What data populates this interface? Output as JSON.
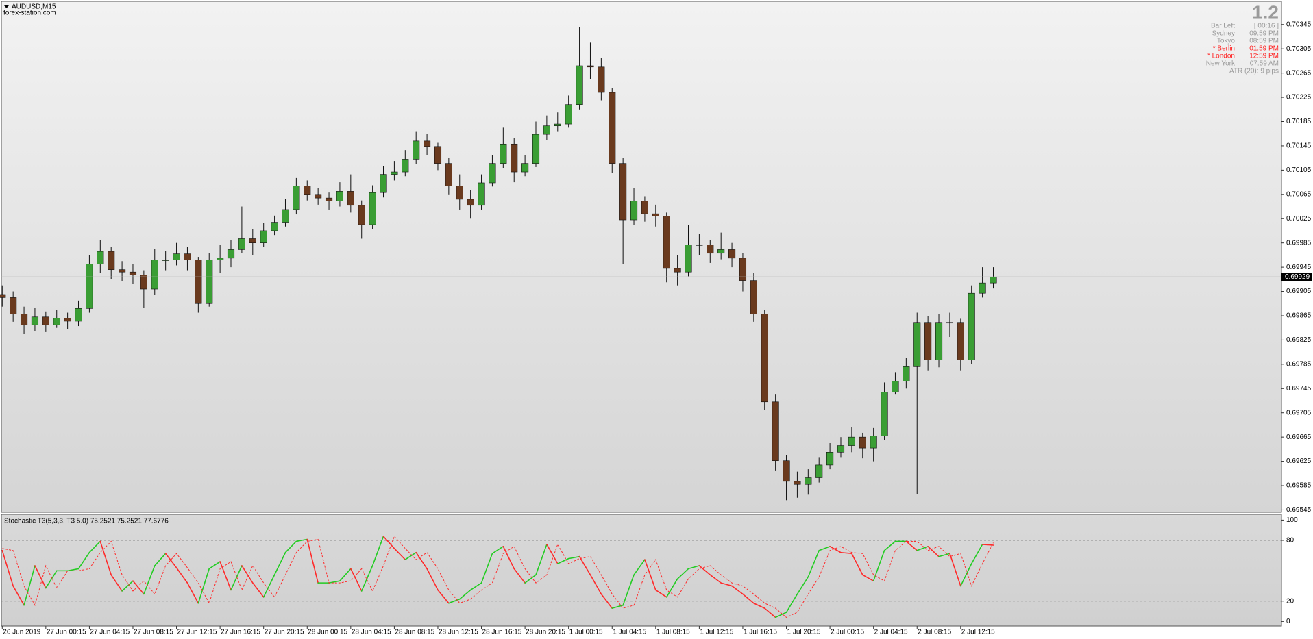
{
  "chart_data": [
    {
      "type": "candlestick",
      "title": "AUDUSD,M15",
      "subtitle": "forex-station.com",
      "up_color": "#3a9e34",
      "down_color": "#6a3a1e",
      "wick_color": "#111111",
      "xlim": [
        -0.08,
        117.46
      ],
      "ylim": [
        0.69541,
        0.70382
      ],
      "yticks": [
        0.70345,
        0.70305,
        0.70265,
        0.70225,
        0.70185,
        0.70145,
        0.70105,
        0.70065,
        0.70025,
        0.69985,
        0.69945,
        0.69905,
        0.69865,
        0.69825,
        0.69785,
        0.69745,
        0.69705,
        0.69665,
        0.69625,
        0.69585,
        0.69545
      ],
      "open": [
        0.699,
        0.69895,
        0.69868,
        0.6985,
        0.69863,
        0.6985,
        0.69861,
        0.69856,
        0.69877,
        0.6995,
        0.69971,
        0.69941,
        0.69937,
        0.69932,
        0.69909,
        0.69957,
        0.69957,
        0.69967,
        0.69957,
        0.69885,
        0.69957,
        0.6996,
        0.69974,
        0.69992,
        0.69985,
        0.70005,
        0.70019,
        0.7004,
        0.70079,
        0.70065,
        0.70059,
        0.70054,
        0.7007,
        0.70047,
        0.70015,
        0.70068,
        0.70098,
        0.70102,
        0.70123,
        0.70153,
        0.70144,
        0.70116,
        0.70079,
        0.70057,
        0.70047,
        0.70084,
        0.70116,
        0.70148,
        0.70102,
        0.70116,
        0.70164,
        0.70178,
        0.70181,
        0.70213,
        0.70277,
        0.70275,
        0.70233,
        0.70116,
        0.70023,
        0.70054,
        0.70033,
        0.70029,
        0.69943,
        0.69937,
        0.69982,
        0.69982,
        0.69968,
        0.69974,
        0.6996,
        0.69923,
        0.69868,
        0.69723,
        0.69626,
        0.69592,
        0.69587,
        0.69598,
        0.69619,
        0.6964,
        0.69651,
        0.69665,
        0.69647,
        0.69667,
        0.69739,
        0.69757,
        0.69781,
        0.69854,
        0.69792,
        0.69854,
        0.69854,
        0.69792,
        0.69902,
        0.69919
      ],
      "high": [
        0.69915,
        0.69905,
        0.6988,
        0.69878,
        0.69872,
        0.69875,
        0.6987,
        0.6989,
        0.69965,
        0.6999,
        0.69978,
        0.69955,
        0.6995,
        0.6994,
        0.69975,
        0.69972,
        0.69985,
        0.69978,
        0.69962,
        0.69968,
        0.69982,
        0.6999,
        0.70045,
        0.70008,
        0.70018,
        0.7003,
        0.70058,
        0.70092,
        0.70088,
        0.70075,
        0.70068,
        0.70085,
        0.70098,
        0.70055,
        0.7008,
        0.70112,
        0.7012,
        0.70138,
        0.70168,
        0.70165,
        0.7015,
        0.70125,
        0.70098,
        0.70072,
        0.70098,
        0.7013,
        0.70175,
        0.70158,
        0.7013,
        0.70185,
        0.70195,
        0.702,
        0.70228,
        0.70341,
        0.70315,
        0.7029,
        0.7024,
        0.70125,
        0.70075,
        0.70062,
        0.70048,
        0.70035,
        0.69965,
        0.70015,
        0.7,
        0.6999,
        0.70002,
        0.69985,
        0.69968,
        0.69935,
        0.69875,
        0.69735,
        0.69635,
        0.69608,
        0.69612,
        0.69632,
        0.69655,
        0.69665,
        0.69682,
        0.69672,
        0.6968,
        0.69755,
        0.69772,
        0.69795,
        0.6987,
        0.69865,
        0.69868,
        0.6987,
        0.6986,
        0.69915,
        0.69945,
        0.69945
      ],
      "low": [
        0.6988,
        0.69855,
        0.69835,
        0.6984,
        0.69838,
        0.69845,
        0.69843,
        0.69848,
        0.6987,
        0.69935,
        0.69925,
        0.69922,
        0.69918,
        0.69878,
        0.699,
        0.6994,
        0.69948,
        0.6994,
        0.6987,
        0.6988,
        0.69935,
        0.69945,
        0.69968,
        0.69965,
        0.69978,
        0.69998,
        0.70012,
        0.70032,
        0.70055,
        0.70048,
        0.7004,
        0.70045,
        0.70035,
        0.69992,
        0.70008,
        0.7006,
        0.70088,
        0.70095,
        0.70115,
        0.7013,
        0.70105,
        0.70065,
        0.7004,
        0.70025,
        0.7004,
        0.70078,
        0.70108,
        0.70085,
        0.70095,
        0.7011,
        0.70155,
        0.70168,
        0.70175,
        0.70205,
        0.70255,
        0.7022,
        0.701,
        0.6995,
        0.70015,
        0.7002,
        0.70012,
        0.6992,
        0.69915,
        0.6993,
        0.69965,
        0.69952,
        0.69958,
        0.69945,
        0.69905,
        0.69855,
        0.6971,
        0.6961,
        0.69561,
        0.69565,
        0.6957,
        0.6959,
        0.69612,
        0.69632,
        0.6964,
        0.6963,
        0.69625,
        0.6966,
        0.69735,
        0.69745,
        0.69571,
        0.69775,
        0.6978,
        0.6983,
        0.69775,
        0.69785,
        0.69895,
        0.6991
      ],
      "close": [
        0.69895,
        0.69868,
        0.6985,
        0.69863,
        0.6985,
        0.69861,
        0.69856,
        0.69877,
        0.6995,
        0.69971,
        0.69941,
        0.69937,
        0.69932,
        0.69909,
        0.69957,
        0.69957,
        0.69967,
        0.69957,
        0.69885,
        0.69957,
        0.6996,
        0.69974,
        0.69992,
        0.69985,
        0.70005,
        0.70019,
        0.7004,
        0.70079,
        0.70065,
        0.70059,
        0.70054,
        0.7007,
        0.70047,
        0.70015,
        0.70068,
        0.70098,
        0.70102,
        0.70123,
        0.70153,
        0.70144,
        0.70116,
        0.70079,
        0.70057,
        0.70047,
        0.70084,
        0.70116,
        0.70148,
        0.70102,
        0.70116,
        0.70164,
        0.70178,
        0.70181,
        0.70213,
        0.70277,
        0.70275,
        0.70233,
        0.70116,
        0.70023,
        0.70054,
        0.70033,
        0.70029,
        0.69943,
        0.69937,
        0.69982,
        0.69982,
        0.69968,
        0.69974,
        0.6996,
        0.69923,
        0.69868,
        0.69723,
        0.69626,
        0.69592,
        0.69587,
        0.69598,
        0.69619,
        0.6964,
        0.69651,
        0.69665,
        0.69647,
        0.69667,
        0.69739,
        0.69757,
        0.69781,
        0.69854,
        0.69792,
        0.69854,
        0.69854,
        0.69792,
        0.69902,
        0.69919,
        0.69929
      ],
      "info": {
        "version": "1.2",
        "rows": [
          {
            "label": "Bar Left",
            "value": "[ 00:16 ]",
            "color": "#9a9a9a"
          },
          {
            "label": "Sydney",
            "value": "09:59 PM",
            "color": "#9a9a9a"
          },
          {
            "label": "Tokyo",
            "value": "08:59 PM",
            "color": "#9a9a9a"
          },
          {
            "label": "* Berlin",
            "value": "01:59 PM",
            "color": "#ff2020"
          },
          {
            "label": "* London",
            "value": "12:59 PM",
            "color": "#ff2020"
          },
          {
            "label": "New York",
            "value": "07:59 AM",
            "color": "#9a9a9a"
          }
        ],
        "footer": "ATR (20): 9 pips"
      }
    },
    {
      "type": "line",
      "title": "Stochastic T3(5,3,3, T3 5.0) 75.2521 75.2521 77.6776",
      "xlim": [
        -0.08,
        117.46
      ],
      "ylim": [
        -4.5,
        105
      ],
      "yticks": [
        0,
        20,
        80,
        100
      ],
      "levels": [
        20,
        80
      ],
      "xticks": [
        {
          "value": 0,
          "label": "26 Jun 2019"
        },
        {
          "value": 4,
          "label": "27 Jun 00:15"
        },
        {
          "value": 8,
          "label": "27 Jun 04:15"
        },
        {
          "value": 12,
          "label": "27 Jun 08:15"
        },
        {
          "value": 16,
          "label": "27 Jun 12:15"
        },
        {
          "value": 20,
          "label": "27 Jun 16:15"
        },
        {
          "value": 24,
          "label": "27 Jun 20:15"
        },
        {
          "value": 28,
          "label": "28 Jun 00:15"
        },
        {
          "value": 32,
          "label": "28 Jun 04:15"
        },
        {
          "value": 36,
          "label": "28 Jun 08:15"
        },
        {
          "value": 40,
          "label": "28 Jun 12:15"
        },
        {
          "value": 44,
          "label": "28 Jun 16:15"
        },
        {
          "value": 48,
          "label": "28 Jun 20:15"
        },
        {
          "value": 52,
          "label": "1 Jul 00:15"
        },
        {
          "value": 56,
          "label": "1 Jul 04:15"
        },
        {
          "value": 60,
          "label": "1 Jul 08:15"
        },
        {
          "value": 64,
          "label": "1 Jul 12:15"
        },
        {
          "value": 68,
          "label": "1 Jul 16:15"
        },
        {
          "value": 72,
          "label": "1 Jul 20:15"
        },
        {
          "value": 76,
          "label": "2 Jul 00:15"
        },
        {
          "value": 80,
          "label": "2 Jul 04:15"
        },
        {
          "value": 84,
          "label": "2 Jul 08:15"
        },
        {
          "value": 88,
          "label": "2 Jul 12:15"
        }
      ],
      "series": [
        {
          "color": "#22cc22",
          "down_color": "#ff2a2a",
          "values": [
            70,
            35,
            16,
            55,
            33,
            50,
            50,
            52,
            68,
            79,
            46,
            30,
            40,
            27,
            55,
            67,
            53,
            38,
            18,
            52,
            59,
            31,
            55,
            38,
            24,
            46,
            68,
            79,
            81,
            38,
            38,
            40,
            52,
            30,
            55,
            84,
            72,
            61,
            68,
            52,
            31,
            18,
            22,
            31,
            38,
            67,
            74,
            52,
            38,
            46,
            76,
            57,
            62,
            64,
            46,
            27,
            13,
            16,
            46,
            61,
            31,
            24,
            42,
            52,
            55,
            46,
            38,
            35,
            27,
            18,
            13,
            4,
            9,
            27,
            44,
            70,
            74,
            68,
            67,
            46,
            40,
            70,
            79,
            79,
            70,
            74,
            64,
            67,
            35,
            57,
            76,
            75.25
          ]
        },
        {
          "color": "#ff2a2a",
          "dashed": true,
          "values": [
            72,
            70,
            35,
            16,
            55,
            33,
            50,
            50,
            52,
            68,
            79,
            46,
            30,
            40,
            27,
            55,
            67,
            53,
            38,
            18,
            52,
            59,
            31,
            55,
            38,
            24,
            46,
            68,
            79,
            81,
            38,
            38,
            40,
            52,
            30,
            55,
            84,
            72,
            61,
            68,
            52,
            31,
            18,
            22,
            31,
            38,
            67,
            74,
            52,
            38,
            46,
            76,
            57,
            62,
            64,
            46,
            27,
            13,
            16,
            46,
            61,
            31,
            24,
            42,
            52,
            55,
            46,
            38,
            35,
            27,
            18,
            13,
            4,
            9,
            27,
            44,
            70,
            74,
            68,
            67,
            46,
            40,
            70,
            79,
            79,
            70,
            74,
            64,
            67,
            35,
            57,
            77.68
          ]
        }
      ]
    }
  ]
}
